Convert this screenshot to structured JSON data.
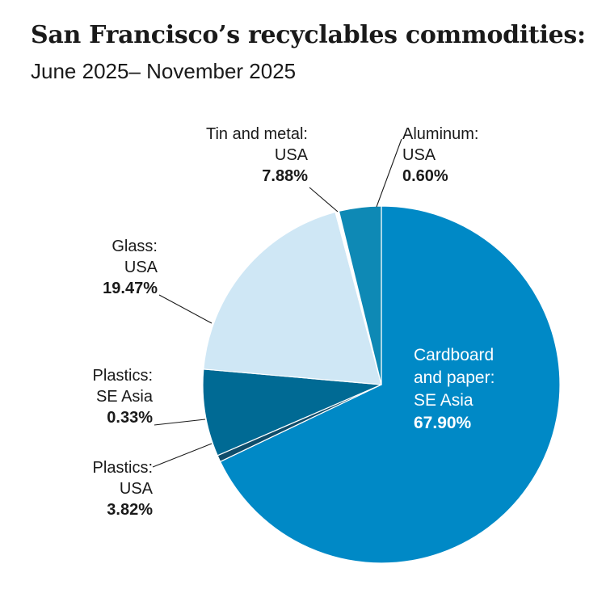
{
  "title": "San Francisco’s recyclables commodities:",
  "subtitle": "June 2025– November 2025",
  "chart_data": {
    "type": "pie",
    "slices": [
      {
        "name_lines": [
          "Cardboard",
          "and paper:",
          "SE Asia"
        ],
        "value": 67.9,
        "value_label": "67.90%",
        "color": "#0089c6"
      },
      {
        "name_lines": [
          "Aluminum:",
          "USA"
        ],
        "value": 0.6,
        "value_label": "0.60%",
        "color": "#0f4d6b"
      },
      {
        "name_lines": [
          "Tin and metal:",
          "USA"
        ],
        "value": 7.88,
        "value_label": "7.88%",
        "color": "#006a94"
      },
      {
        "name_lines": [
          "Glass:",
          "USA"
        ],
        "value": 19.47,
        "value_label": "19.47%",
        "color": "#cfe7f5"
      },
      {
        "name_lines": [
          "Plastics:",
          "SE Asia"
        ],
        "value": 0.33,
        "value_label": "0.33%",
        "color": "#ffffff"
      },
      {
        "name_lines": [
          "Plastics:",
          "USA"
        ],
        "value": 3.82,
        "value_label": "3.82%",
        "color": "#0e89b5"
      }
    ]
  }
}
